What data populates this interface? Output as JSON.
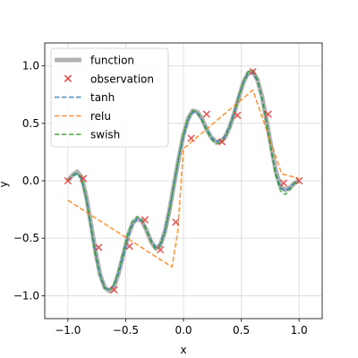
{
  "chart_data": {
    "type": "line",
    "title": "",
    "xlabel": "x",
    "ylabel": "y",
    "xlim": [
      -1.2,
      1.2
    ],
    "ylim": [
      -1.2,
      1.2
    ],
    "xticks": [
      -1.0,
      -0.5,
      0.0,
      0.5,
      1.0
    ],
    "xtick_labels": [
      "−1.0",
      "−0.5",
      "0.0",
      "0.5",
      "1.0"
    ],
    "yticks": [
      -1.0,
      -0.5,
      0.0,
      0.5,
      1.0
    ],
    "ytick_labels": [
      "−1.0",
      "−0.5",
      "0.0",
      "0.5",
      "1.0"
    ],
    "grid": true,
    "legend_position": "top-left",
    "observations": {
      "name": "observation",
      "color": "#e8413f",
      "marker": "x",
      "x": [
        -1.0,
        -0.8667,
        -0.7333,
        -0.6,
        -0.4667,
        -0.3333,
        -0.2,
        -0.0667,
        0.0667,
        0.2,
        0.3333,
        0.4667,
        0.6,
        0.7333,
        0.8667,
        1.0
      ],
      "y": [
        0.0,
        0.02,
        -0.58,
        -0.95,
        -0.57,
        -0.34,
        -0.6,
        -0.36,
        0.37,
        0.58,
        0.34,
        0.57,
        0.95,
        0.58,
        -0.02,
        0.0
      ]
    },
    "series": [
      {
        "name": "function",
        "color": "#aaaaaa",
        "style": "solid",
        "x": [
          -1.0,
          -0.96,
          -0.92,
          -0.88,
          -0.84,
          -0.8,
          -0.76,
          -0.72,
          -0.68,
          -0.64,
          -0.6,
          -0.56,
          -0.52,
          -0.48,
          -0.44,
          -0.4,
          -0.36,
          -0.32,
          -0.28,
          -0.24,
          -0.2,
          -0.16,
          -0.12,
          -0.08,
          -0.04,
          0.0,
          0.04,
          0.08,
          0.12,
          0.16,
          0.2,
          0.24,
          0.28,
          0.32,
          0.36,
          0.4,
          0.44,
          0.48,
          0.52,
          0.56,
          0.6,
          0.64,
          0.68,
          0.72,
          0.76,
          0.8,
          0.84,
          0.88,
          0.92,
          0.96,
          1.0
        ],
        "y": [
          0.0,
          0.05,
          0.08,
          0.03,
          -0.14,
          -0.38,
          -0.62,
          -0.82,
          -0.93,
          -0.96,
          -0.92,
          -0.8,
          -0.64,
          -0.48,
          -0.37,
          -0.33,
          -0.35,
          -0.43,
          -0.53,
          -0.59,
          -0.56,
          -0.44,
          -0.25,
          -0.02,
          0.2,
          0.4,
          0.54,
          0.61,
          0.6,
          0.54,
          0.45,
          0.38,
          0.34,
          0.34,
          0.38,
          0.47,
          0.59,
          0.73,
          0.86,
          0.94,
          0.95,
          0.88,
          0.73,
          0.52,
          0.29,
          0.08,
          -0.05,
          -0.08,
          -0.06,
          -0.02,
          0.0
        ]
      },
      {
        "name": "tanh",
        "color": "#1f77b4",
        "style": "dashed",
        "x": [
          -1.0,
          -0.96,
          -0.92,
          -0.88,
          -0.84,
          -0.8,
          -0.76,
          -0.72,
          -0.68,
          -0.64,
          -0.6,
          -0.56,
          -0.52,
          -0.48,
          -0.44,
          -0.4,
          -0.36,
          -0.32,
          -0.28,
          -0.24,
          -0.2,
          -0.16,
          -0.12,
          -0.08,
          -0.04,
          0.0,
          0.04,
          0.08,
          0.12,
          0.16,
          0.2,
          0.24,
          0.28,
          0.32,
          0.36,
          0.4,
          0.44,
          0.48,
          0.52,
          0.56,
          0.6,
          0.64,
          0.68,
          0.72,
          0.76,
          0.8,
          0.84,
          0.88,
          0.92,
          0.96,
          1.0
        ],
        "y": [
          0.0,
          0.04,
          0.06,
          0.01,
          -0.15,
          -0.39,
          -0.63,
          -0.82,
          -0.93,
          -0.95,
          -0.91,
          -0.8,
          -0.65,
          -0.49,
          -0.38,
          -0.33,
          -0.35,
          -0.43,
          -0.52,
          -0.58,
          -0.55,
          -0.43,
          -0.24,
          -0.02,
          0.2,
          0.39,
          0.53,
          0.6,
          0.59,
          0.53,
          0.45,
          0.38,
          0.34,
          0.35,
          0.39,
          0.48,
          0.6,
          0.74,
          0.86,
          0.93,
          0.94,
          0.87,
          0.72,
          0.5,
          0.27,
          0.06,
          -0.06,
          -0.09,
          -0.06,
          -0.02,
          0.0
        ]
      },
      {
        "name": "relu",
        "color": "#ff7f0e",
        "style": "dashed",
        "x": [
          -1.0,
          -0.1,
          -0.05,
          0.0,
          0.6,
          0.85,
          1.0
        ],
        "y": [
          -0.17,
          -0.75,
          -0.45,
          0.28,
          0.79,
          0.06,
          0.02
        ]
      },
      {
        "name": "swish",
        "color": "#2ca02c",
        "style": "dashed",
        "x": [
          -1.0,
          -0.96,
          -0.92,
          -0.88,
          -0.84,
          -0.8,
          -0.76,
          -0.72,
          -0.68,
          -0.64,
          -0.6,
          -0.56,
          -0.52,
          -0.48,
          -0.44,
          -0.4,
          -0.36,
          -0.32,
          -0.28,
          -0.24,
          -0.2,
          -0.16,
          -0.12,
          -0.08,
          -0.04,
          0.0,
          0.04,
          0.08,
          0.12,
          0.16,
          0.2,
          0.24,
          0.28,
          0.32,
          0.36,
          0.4,
          0.44,
          0.48,
          0.52,
          0.56,
          0.6,
          0.64,
          0.68,
          0.72,
          0.76,
          0.8,
          0.84,
          0.88,
          0.92,
          0.96,
          1.0
        ],
        "y": [
          0.0,
          0.05,
          0.07,
          0.02,
          -0.16,
          -0.41,
          -0.66,
          -0.84,
          -0.94,
          -0.95,
          -0.9,
          -0.78,
          -0.62,
          -0.46,
          -0.35,
          -0.31,
          -0.34,
          -0.43,
          -0.53,
          -0.6,
          -0.57,
          -0.45,
          -0.26,
          -0.02,
          0.21,
          0.41,
          0.55,
          0.61,
          0.6,
          0.53,
          0.44,
          0.36,
          0.32,
          0.33,
          0.37,
          0.46,
          0.59,
          0.74,
          0.87,
          0.95,
          0.96,
          0.88,
          0.72,
          0.5,
          0.26,
          0.04,
          -0.09,
          -0.12,
          -0.08,
          -0.02,
          0.0
        ]
      }
    ],
    "legend": [
      "function",
      "observation",
      "tanh",
      "relu",
      "swish"
    ]
  }
}
